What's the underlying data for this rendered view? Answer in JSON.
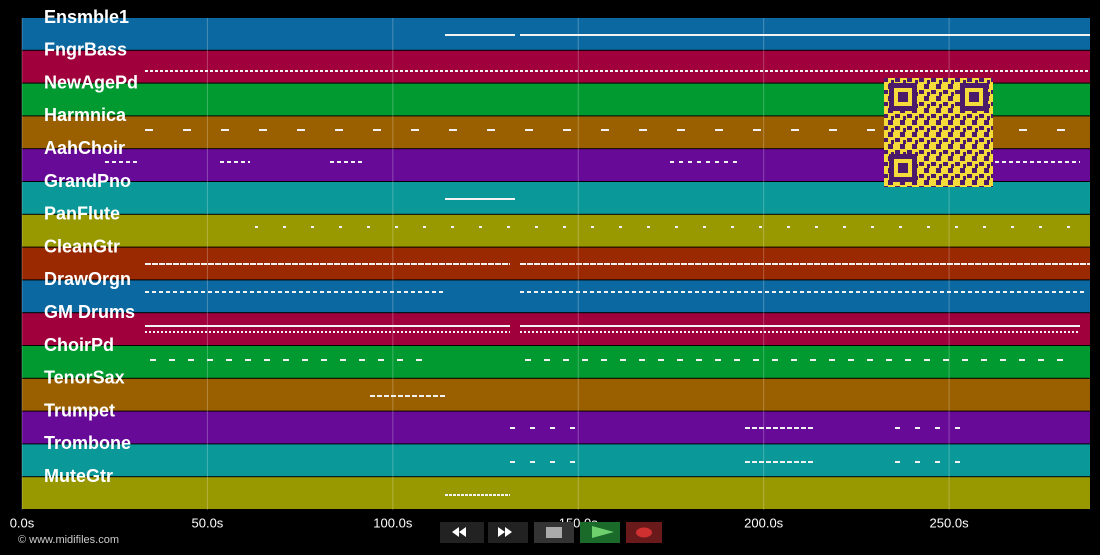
{
  "tracks": [
    {
      "name": "Ensmble1",
      "color": "#0b68a0"
    },
    {
      "name": "FngrBass",
      "color": "#a0003c"
    },
    {
      "name": "NewAgePd",
      "color": "#009a30"
    },
    {
      "name": "Harmnica",
      "color": "#9a6000"
    },
    {
      "name": "AahChoir",
      "color": "#680a98"
    },
    {
      "name": "GrandPno",
      "color": "#0a9898"
    },
    {
      "name": "PanFlute",
      "color": "#989800"
    },
    {
      "name": "CleanGtr",
      "color": "#9a2800"
    },
    {
      "name": "DrawOrgn",
      "color": "#0b68a0"
    },
    {
      "name": "GM Drums",
      "color": "#a0003c"
    },
    {
      "name": "ChoirPd",
      "color": "#009a30"
    },
    {
      "name": "TenorSax",
      "color": "#9a6000"
    },
    {
      "name": "Trumpet",
      "color": "#680a98"
    },
    {
      "name": "Trombone",
      "color": "#0a9898"
    },
    {
      "name": "MuteGtr",
      "color": "#989800"
    }
  ],
  "time_axis": {
    "xlim": [
      0,
      288
    ],
    "ticks": [
      {
        "value": 0,
        "label": "0.0s"
      },
      {
        "value": 50,
        "label": "50.0s"
      },
      {
        "value": 100,
        "label": "100.0s"
      },
      {
        "value": 150,
        "label": "150.0s"
      },
      {
        "value": 200,
        "label": "200.0s"
      },
      {
        "value": 250,
        "label": "250.0s"
      }
    ]
  },
  "footer": "© www.midifiles.com"
}
